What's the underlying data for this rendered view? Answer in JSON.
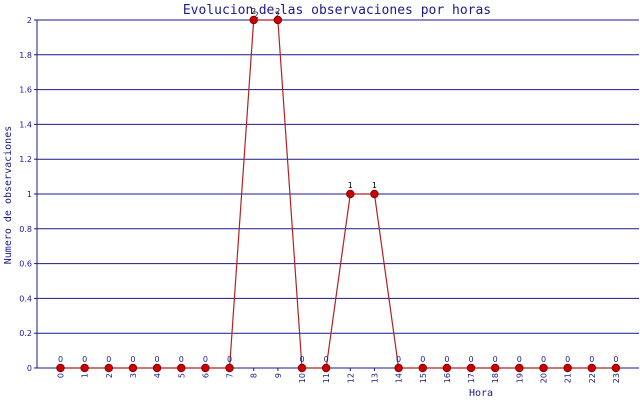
{
  "chart_data": {
    "type": "line",
    "title_parts": [
      "Evolucion",
      "2",
      "de",
      "2",
      "las observaciones por horas"
    ],
    "xlabel": "Hora",
    "ylabel": "Numero de observaciones",
    "categories": [
      "0",
      "1",
      "2",
      "3",
      "4",
      "5",
      "6",
      "7",
      "8",
      "9",
      "10",
      "11",
      "12",
      "13",
      "14",
      "15",
      "16",
      "17",
      "18",
      "19",
      "20",
      "21",
      "22",
      "23"
    ],
    "values": [
      0,
      0,
      0,
      0,
      0,
      0,
      0,
      0,
      2,
      2,
      0,
      0,
      1,
      1,
      0,
      0,
      0,
      0,
      0,
      0,
      0,
      0,
      0,
      0
    ],
    "data_labels": [
      "0",
      "0",
      "0",
      "0",
      "0",
      "0",
      "0",
      "0",
      "2",
      "2",
      "0",
      "0",
      "1",
      "1",
      "0",
      "0",
      "0",
      "0",
      "0",
      "0",
      "0",
      "0",
      "0",
      "0"
    ],
    "yticks": [
      "0",
      "0.2",
      "0.4",
      "0.6",
      "0.8",
      "1",
      "1.2",
      "1.4",
      "1.6",
      "1.8",
      "2"
    ],
    "ylim": [
      0,
      2
    ],
    "grid": true,
    "legend": "none"
  },
  "colors": {
    "line": "#b22222",
    "marker": "#cc0000",
    "grid": "#1a1a8c",
    "axis": "#1a1a8c",
    "text": "#1a1a8c"
  }
}
